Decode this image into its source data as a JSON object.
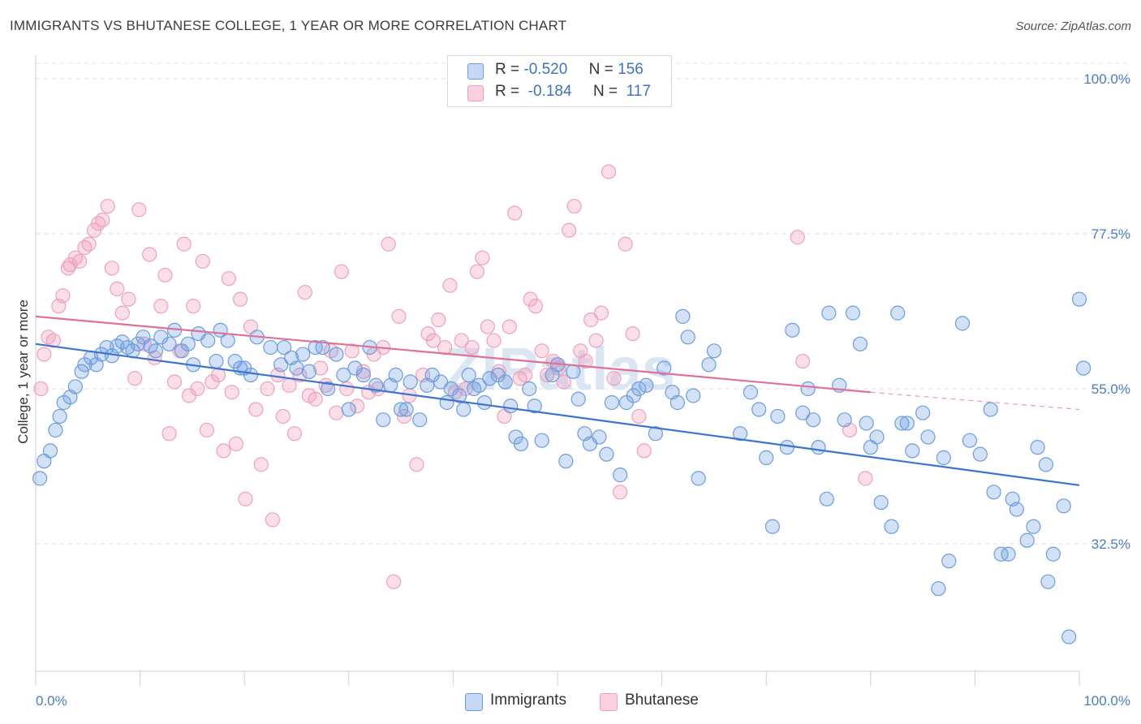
{
  "title": "IMMIGRANTS VS BHUTANESE COLLEGE, 1 YEAR OR MORE CORRELATION CHART",
  "source": "Source: ZipAtlas.com",
  "watermark": "ZIPatlas",
  "legend": {
    "rows": [
      {
        "r_label": "R =",
        "r_value": "-0.520",
        "n_label": "N =",
        "n_value": "156"
      },
      {
        "r_label": "R =",
        "r_value": "-0.184",
        "n_label": "N =",
        "n_value": "117"
      }
    ]
  },
  "chart_data": {
    "type": "scatter",
    "title": "IMMIGRANTS VS BHUTANESE COLLEGE, 1 YEAR OR MORE CORRELATION CHART",
    "xlabel": "",
    "ylabel": "College, 1 year or more",
    "xlim": [
      0,
      100
    ],
    "ylim": [
      10,
      105
    ],
    "x_tick_labels": [
      "0.0%",
      "100.0%"
    ],
    "y_ticks": [
      32.5,
      55.0,
      77.5,
      100.0
    ],
    "y_tick_labels": [
      "32.5%",
      "55.0%",
      "77.5%",
      "100.0%"
    ],
    "grid": true,
    "legend_position": "top-center",
    "colors": {
      "immigrants": "#6a9de0",
      "bhutanese": "#f0a0bc",
      "immigrants_line": "#3a74d2",
      "bhutanese_line": "#e07098"
    },
    "series": [
      {
        "name": "Immigrants",
        "r": -0.52,
        "n": 156,
        "trend": {
          "x": [
            0,
            100
          ],
          "y": [
            61.5,
            41.0
          ]
        },
        "points": [
          [
            0.4,
            42
          ],
          [
            0.8,
            44.5
          ],
          [
            1.4,
            46
          ],
          [
            1.9,
            49
          ],
          [
            2.3,
            51
          ],
          [
            2.7,
            53
          ],
          [
            3.3,
            53.8
          ],
          [
            3.8,
            55.3
          ],
          [
            4.4,
            57.5
          ],
          [
            4.7,
            58.5
          ],
          [
            5.3,
            59.5
          ],
          [
            5.8,
            58.5
          ],
          [
            6.3,
            60
          ],
          [
            6.8,
            61
          ],
          [
            7.3,
            59.8
          ],
          [
            7.8,
            61.2
          ],
          [
            8.3,
            61.8
          ],
          [
            8.8,
            61
          ],
          [
            9.3,
            60.5
          ],
          [
            9.8,
            61.5
          ],
          [
            10.3,
            62.5
          ],
          [
            11,
            61.2
          ],
          [
            11.5,
            60.5
          ],
          [
            12,
            62.5
          ],
          [
            12.8,
            61.5
          ],
          [
            13.3,
            63.5
          ],
          [
            14,
            60.5
          ],
          [
            14.6,
            61.5
          ],
          [
            15.1,
            58.5
          ],
          [
            15.6,
            63
          ],
          [
            16.5,
            62
          ],
          [
            17.3,
            59
          ],
          [
            17.7,
            63.5
          ],
          [
            18.4,
            62
          ],
          [
            19.1,
            59
          ],
          [
            19.6,
            58
          ],
          [
            20,
            58
          ],
          [
            20.6,
            57
          ],
          [
            21.2,
            62.5
          ],
          [
            22.5,
            61
          ],
          [
            23.5,
            58.5
          ],
          [
            23.8,
            61
          ],
          [
            24.5,
            59.5
          ],
          [
            25,
            58
          ],
          [
            25.6,
            60
          ],
          [
            26.2,
            57.5
          ],
          [
            26.8,
            61
          ],
          [
            27.5,
            61
          ],
          [
            28,
            55
          ],
          [
            28.8,
            60
          ],
          [
            29.5,
            57
          ],
          [
            30,
            52
          ],
          [
            30.6,
            58
          ],
          [
            31.4,
            57
          ],
          [
            32,
            61
          ],
          [
            32.6,
            55.5
          ],
          [
            33.3,
            50.5
          ],
          [
            34,
            55.5
          ],
          [
            34.5,
            57
          ],
          [
            35,
            52
          ],
          [
            35.5,
            52
          ],
          [
            35.9,
            56
          ],
          [
            36.8,
            50.5
          ],
          [
            37.5,
            55.5
          ],
          [
            38,
            57
          ],
          [
            38.8,
            56
          ],
          [
            39.4,
            53
          ],
          [
            39.8,
            55
          ],
          [
            40.6,
            54
          ],
          [
            41,
            52
          ],
          [
            41.5,
            57
          ],
          [
            42,
            55
          ],
          [
            42.5,
            55.5
          ],
          [
            43,
            53
          ],
          [
            43.5,
            56.5
          ],
          [
            44.3,
            57
          ],
          [
            45,
            56
          ],
          [
            45.5,
            52.5
          ],
          [
            46,
            48
          ],
          [
            46.5,
            47
          ],
          [
            47.3,
            55
          ],
          [
            47.8,
            52.5
          ],
          [
            48.5,
            47.5
          ],
          [
            49.5,
            57
          ],
          [
            50,
            58.5
          ],
          [
            50.8,
            44.5
          ],
          [
            51.5,
            57.5
          ],
          [
            52,
            53.5
          ],
          [
            52.6,
            48.5
          ],
          [
            53.1,
            47
          ],
          [
            54,
            48
          ],
          [
            54.7,
            45.5
          ],
          [
            55.2,
            53
          ],
          [
            56,
            42.5
          ],
          [
            56.6,
            53
          ],
          [
            57.3,
            54
          ],
          [
            57.8,
            55
          ],
          [
            58.5,
            55.5
          ],
          [
            59.4,
            48.5
          ],
          [
            60.2,
            58
          ],
          [
            61,
            54.5
          ],
          [
            61.5,
            53
          ],
          [
            62,
            65.5
          ],
          [
            62.5,
            62.5
          ],
          [
            63,
            54
          ],
          [
            63.5,
            42
          ],
          [
            64.5,
            58.5
          ],
          [
            65,
            60.5
          ],
          [
            67.5,
            48.5
          ],
          [
            68.5,
            54.5
          ],
          [
            69.3,
            52
          ],
          [
            70,
            45
          ],
          [
            70.6,
            35
          ],
          [
            71.1,
            51
          ],
          [
            72,
            46.5
          ],
          [
            72.5,
            63.5
          ],
          [
            73.5,
            51.5
          ],
          [
            74,
            55
          ],
          [
            74.5,
            50.5
          ],
          [
            75,
            46.5
          ],
          [
            75.8,
            39
          ],
          [
            76,
            66
          ],
          [
            77,
            55.5
          ],
          [
            77.5,
            50.5
          ],
          [
            78.3,
            66
          ],
          [
            79,
            61.5
          ],
          [
            79.6,
            50
          ],
          [
            80,
            46.5
          ],
          [
            80.6,
            48
          ],
          [
            81,
            38.5
          ],
          [
            82,
            35
          ],
          [
            82.6,
            66
          ],
          [
            83,
            50
          ],
          [
            83.5,
            50
          ],
          [
            84,
            46
          ],
          [
            85,
            51.5
          ],
          [
            85.5,
            48
          ],
          [
            86.5,
            26
          ],
          [
            87,
            45
          ],
          [
            87.5,
            30
          ],
          [
            88.8,
            64.5
          ],
          [
            89.5,
            47.5
          ],
          [
            90.5,
            45.5
          ],
          [
            91.5,
            52
          ],
          [
            91.8,
            40
          ],
          [
            92.5,
            31
          ],
          [
            93.2,
            31
          ],
          [
            93.6,
            39
          ],
          [
            94,
            37.5
          ],
          [
            95,
            33
          ],
          [
            95.6,
            35
          ],
          [
            96,
            46.5
          ],
          [
            96.8,
            44
          ],
          [
            97,
            27
          ],
          [
            97.5,
            31
          ],
          [
            98.5,
            38
          ],
          [
            99,
            19
          ],
          [
            100,
            68
          ],
          [
            100.4,
            58
          ]
        ]
      },
      {
        "name": "Bhutanese",
        "r": -0.184,
        "n": 117,
        "trend": {
          "x": [
            0,
            80
          ],
          "y": [
            65.5,
            54.5
          ]
        },
        "trend_dashed": {
          "x": [
            80,
            100
          ],
          "y": [
            54.5,
            52
          ]
        },
        "points": [
          [
            0.5,
            55
          ],
          [
            0.8,
            60
          ],
          [
            1.2,
            62.5
          ],
          [
            1.7,
            62
          ],
          [
            2.2,
            67
          ],
          [
            2.6,
            68.5
          ],
          [
            3.1,
            72.5
          ],
          [
            3.3,
            73
          ],
          [
            3.8,
            74
          ],
          [
            4.2,
            73.5
          ],
          [
            4.7,
            75.5
          ],
          [
            5.1,
            76
          ],
          [
            5.6,
            78
          ],
          [
            6,
            79
          ],
          [
            6.4,
            79.5
          ],
          [
            6.9,
            81.5
          ],
          [
            7.3,
            72.5
          ],
          [
            7.8,
            69.5
          ],
          [
            8.3,
            66
          ],
          [
            8.9,
            68
          ],
          [
            9.5,
            56.5
          ],
          [
            9.9,
            81
          ],
          [
            10.4,
            61.5
          ],
          [
            10.9,
            74.5
          ],
          [
            11.4,
            59.5
          ],
          [
            12,
            67
          ],
          [
            12.4,
            71.5
          ],
          [
            12.8,
            48.5
          ],
          [
            13.3,
            56
          ],
          [
            13.8,
            60.5
          ],
          [
            14.2,
            76
          ],
          [
            14.7,
            54
          ],
          [
            15.1,
            67
          ],
          [
            15.5,
            55
          ],
          [
            16,
            73.5
          ],
          [
            16.4,
            49
          ],
          [
            16.9,
            56
          ],
          [
            17.5,
            57
          ],
          [
            18,
            46
          ],
          [
            18.5,
            71
          ],
          [
            18.8,
            54.5
          ],
          [
            19.2,
            47
          ],
          [
            19.6,
            68
          ],
          [
            20.1,
            39
          ],
          [
            20.6,
            64
          ],
          [
            21.1,
            52
          ],
          [
            21.6,
            44
          ],
          [
            22.2,
            55
          ],
          [
            22.7,
            36
          ],
          [
            23.2,
            57
          ],
          [
            23.7,
            51
          ],
          [
            24.3,
            55.5
          ],
          [
            24.8,
            48.5
          ],
          [
            25.3,
            57
          ],
          [
            25.8,
            69
          ],
          [
            26.2,
            54
          ],
          [
            26.8,
            53.5
          ],
          [
            27.3,
            58
          ],
          [
            27.8,
            55.5
          ],
          [
            28.3,
            60.5
          ],
          [
            28.8,
            51.5
          ],
          [
            29.3,
            72
          ],
          [
            29.8,
            55
          ],
          [
            30.3,
            60.5
          ],
          [
            30.8,
            52.5
          ],
          [
            31.4,
            57.5
          ],
          [
            31.9,
            54.5
          ],
          [
            32.4,
            60
          ],
          [
            32.8,
            55
          ],
          [
            33.3,
            61
          ],
          [
            33.8,
            76
          ],
          [
            34.3,
            27
          ],
          [
            34.8,
            65.5
          ],
          [
            35.3,
            51
          ],
          [
            35.8,
            54
          ],
          [
            36.5,
            44
          ],
          [
            37.1,
            57
          ],
          [
            37.6,
            63
          ],
          [
            38.1,
            62
          ],
          [
            38.6,
            65
          ],
          [
            39.2,
            61
          ],
          [
            39.7,
            70
          ],
          [
            40.2,
            54.5
          ],
          [
            40.8,
            62
          ],
          [
            41.2,
            55
          ],
          [
            41.8,
            61
          ],
          [
            42.3,
            72
          ],
          [
            42.8,
            74
          ],
          [
            43.3,
            64
          ],
          [
            43.9,
            62
          ],
          [
            44.4,
            57.5
          ],
          [
            44.9,
            51
          ],
          [
            45.4,
            64
          ],
          [
            45.9,
            80.5
          ],
          [
            46.4,
            56.5
          ],
          [
            46.9,
            57
          ],
          [
            47.4,
            68
          ],
          [
            47.9,
            67
          ],
          [
            48.5,
            60.5
          ],
          [
            49,
            57
          ],
          [
            49.6,
            59
          ],
          [
            50.1,
            58
          ],
          [
            50.6,
            56
          ],
          [
            51.1,
            78
          ],
          [
            51.6,
            81.5
          ],
          [
            52.2,
            60.5
          ],
          [
            52.7,
            59
          ],
          [
            53.2,
            65
          ],
          [
            53.7,
            62
          ],
          [
            54.2,
            66
          ],
          [
            54.9,
            86.5
          ],
          [
            55.4,
            56.5
          ],
          [
            56,
            40
          ],
          [
            56.5,
            76
          ],
          [
            57.2,
            63
          ],
          [
            57.8,
            51
          ],
          [
            58.3,
            46
          ],
          [
            73.5,
            59
          ],
          [
            78,
            49
          ],
          [
            79.5,
            42
          ],
          [
            73,
            77
          ]
        ]
      }
    ]
  },
  "bottom_legend": {
    "items": [
      {
        "label": "Immigrants"
      },
      {
        "label": "Bhutanese"
      }
    ]
  }
}
